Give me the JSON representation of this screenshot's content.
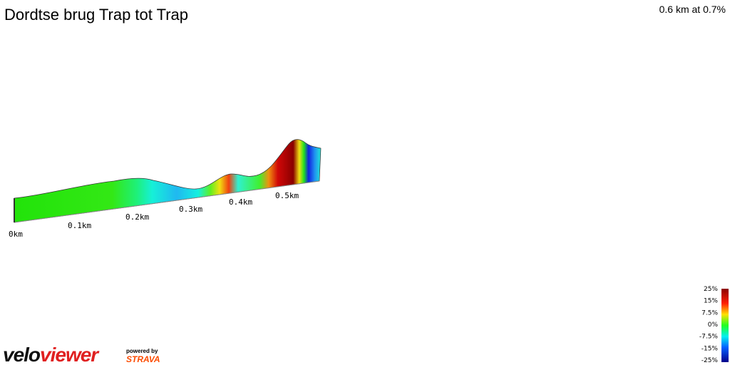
{
  "header": {
    "title": "Dordtse brug Trap tot Trap",
    "summary": "0.6 km at 0.7%"
  },
  "profile": {
    "distance_labels": [
      "0km",
      "0.1km",
      "0.2km",
      "0.3km",
      "0.4km",
      "0.5km"
    ]
  },
  "legend": {
    "labels": [
      "25%",
      "15%",
      "7.5%",
      "0%",
      "-7.5%",
      "-15%",
      "-25%"
    ]
  },
  "branding": {
    "logo_part1": "velo",
    "logo_part2": "viewer",
    "powered_by": "powered by",
    "strava": "STRAVA"
  }
}
